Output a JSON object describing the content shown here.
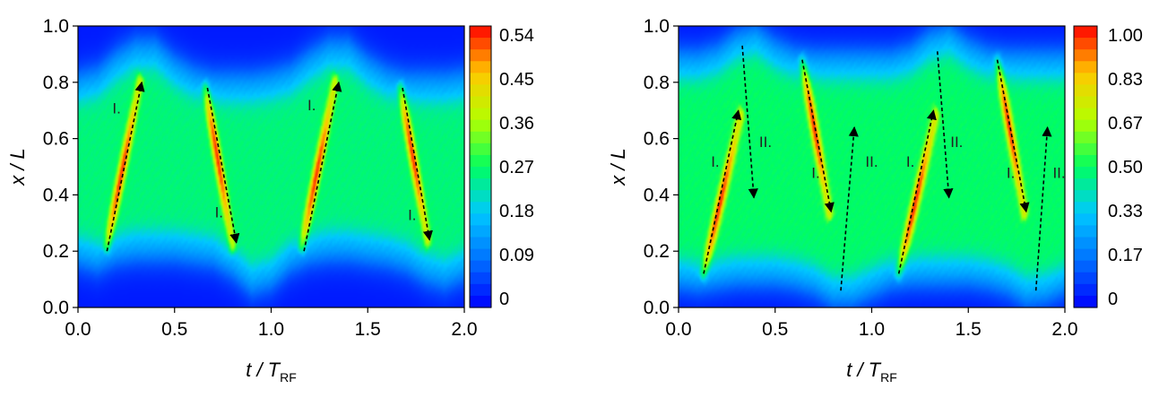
{
  "chart_data": [
    {
      "type": "heatmap",
      "title": "",
      "xlabel": "t / T_RF",
      "ylabel": "x / L",
      "xlim": [
        0.0,
        2.0
      ],
      "ylim": [
        0.0,
        1.0
      ],
      "x_ticks": [
        "0.0",
        "0.5",
        "1.0",
        "1.5",
        "2.0"
      ],
      "y_ticks": [
        "0.0",
        "0.2",
        "0.4",
        "0.6",
        "0.8",
        "1.0"
      ],
      "colorbar": {
        "ticks": [
          "0.54",
          "0.45",
          "0.36",
          "0.27",
          "0.18",
          "0.09",
          "0"
        ],
        "range": [
          0,
          0.54
        ],
        "colors": [
          "#0000ff",
          "#0070ff",
          "#00c8ff",
          "#00ff60",
          "#b4ff00",
          "#ffc800",
          "#ff0000"
        ]
      },
      "field": {
        "background": 0.26,
        "edge_value": 0.02,
        "edges_low": [
          [
            0.0,
            0.18
          ],
          [
            0.1,
            0.16
          ],
          [
            0.2,
            0.19
          ],
          [
            0.3,
            0.2
          ],
          [
            0.4,
            0.2
          ],
          [
            0.5,
            0.2
          ],
          [
            0.6,
            0.19
          ],
          [
            0.7,
            0.18
          ],
          [
            0.8,
            0.14
          ],
          [
            0.9,
            0.08
          ],
          [
            1.0,
            0.1
          ],
          [
            1.1,
            0.16
          ],
          [
            1.2,
            0.19
          ],
          [
            1.3,
            0.2
          ],
          [
            1.4,
            0.2
          ],
          [
            1.5,
            0.19
          ],
          [
            1.6,
            0.18
          ],
          [
            1.7,
            0.16
          ],
          [
            1.8,
            0.12
          ],
          [
            1.9,
            0.1
          ],
          [
            2.0,
            0.13
          ]
        ],
        "edges_high": [
          [
            0.0,
            0.8
          ],
          [
            0.1,
            0.82
          ],
          [
            0.2,
            0.88
          ],
          [
            0.3,
            0.92
          ],
          [
            0.4,
            0.92
          ],
          [
            0.5,
            0.86
          ],
          [
            0.6,
            0.82
          ],
          [
            0.7,
            0.8
          ],
          [
            0.8,
            0.8
          ],
          [
            0.9,
            0.8
          ],
          [
            1.0,
            0.81
          ],
          [
            1.1,
            0.83
          ],
          [
            1.2,
            0.88
          ],
          [
            1.3,
            0.92
          ],
          [
            1.4,
            0.92
          ],
          [
            1.5,
            0.86
          ],
          [
            1.6,
            0.82
          ],
          [
            1.7,
            0.8
          ],
          [
            1.8,
            0.8
          ],
          [
            1.9,
            0.8
          ],
          [
            2.0,
            0.81
          ]
        ],
        "bands": [
          {
            "from": [
              0.15,
              0.22
            ],
            "to": [
              0.32,
              0.8
            ],
            "peak": 0.52
          },
          {
            "from": [
              0.66,
              0.78
            ],
            "to": [
              0.8,
              0.22
            ],
            "peak": 0.52
          },
          {
            "from": [
              1.16,
              0.22
            ],
            "to": [
              1.33,
              0.8
            ],
            "peak": 0.52
          },
          {
            "from": [
              1.67,
              0.78
            ],
            "to": [
              1.81,
              0.24
            ],
            "peak": 0.52
          }
        ]
      },
      "arrows": [
        {
          "from": [
            0.15,
            0.2
          ],
          "to": [
            0.33,
            0.8
          ]
        },
        {
          "from": [
            0.67,
            0.78
          ],
          "to": [
            0.82,
            0.23
          ]
        },
        {
          "from": [
            1.17,
            0.2
          ],
          "to": [
            1.35,
            0.8
          ]
        },
        {
          "from": [
            1.68,
            0.78
          ],
          "to": [
            1.82,
            0.24
          ]
        }
      ],
      "annotations": [
        {
          "text": "I.",
          "x": 0.2,
          "y": 0.69
        },
        {
          "text": "I.",
          "x": 0.73,
          "y": 0.32
        },
        {
          "text": "I.",
          "x": 1.21,
          "y": 0.7
        },
        {
          "text": "I.",
          "x": 1.73,
          "y": 0.31
        }
      ]
    },
    {
      "type": "heatmap",
      "title": "",
      "xlabel": "t / T_RF",
      "ylabel": "x / L",
      "xlim": [
        0.0,
        2.0
      ],
      "ylim": [
        0.0,
        1.0
      ],
      "x_ticks": [
        "0.0",
        "0.5",
        "1.0",
        "1.5",
        "2.0"
      ],
      "y_ticks": [
        "0.0",
        "0.2",
        "0.4",
        "0.6",
        "0.8",
        "1.0"
      ],
      "colorbar": {
        "ticks": [
          "1.00",
          "0.83",
          "0.67",
          "0.50",
          "0.33",
          "0.17",
          "0"
        ],
        "range": [
          0,
          1.0
        ],
        "colors": [
          "#0000ff",
          "#0070ff",
          "#00c8ff",
          "#00ff60",
          "#b4ff00",
          "#ffc800",
          "#ff0000"
        ]
      },
      "field": {
        "background": 0.5,
        "edge_value": 0.03,
        "edges_low": [
          [
            0.0,
            0.1
          ],
          [
            0.1,
            0.09
          ],
          [
            0.2,
            0.1
          ],
          [
            0.3,
            0.11
          ],
          [
            0.4,
            0.11
          ],
          [
            0.5,
            0.11
          ],
          [
            0.6,
            0.1
          ],
          [
            0.7,
            0.08
          ],
          [
            0.8,
            0.04
          ],
          [
            0.9,
            0.04
          ],
          [
            1.0,
            0.07
          ],
          [
            1.1,
            0.1
          ],
          [
            1.2,
            0.11
          ],
          [
            1.3,
            0.11
          ],
          [
            1.4,
            0.11
          ],
          [
            1.5,
            0.11
          ],
          [
            1.6,
            0.1
          ],
          [
            1.7,
            0.08
          ],
          [
            1.8,
            0.04
          ],
          [
            1.9,
            0.05
          ],
          [
            2.0,
            0.08
          ]
        ],
        "edges_high": [
          [
            0.0,
            0.88
          ],
          [
            0.1,
            0.88
          ],
          [
            0.2,
            0.9
          ],
          [
            0.3,
            0.95
          ],
          [
            0.4,
            0.97
          ],
          [
            0.5,
            0.92
          ],
          [
            0.6,
            0.89
          ],
          [
            0.7,
            0.88
          ],
          [
            0.8,
            0.88
          ],
          [
            0.9,
            0.88
          ],
          [
            1.0,
            0.88
          ],
          [
            1.1,
            0.88
          ],
          [
            1.2,
            0.9
          ],
          [
            1.3,
            0.95
          ],
          [
            1.4,
            0.97
          ],
          [
            1.5,
            0.92
          ],
          [
            1.6,
            0.89
          ],
          [
            1.7,
            0.88
          ],
          [
            1.8,
            0.88
          ],
          [
            1.9,
            0.88
          ],
          [
            2.0,
            0.88
          ]
        ],
        "bands": [
          {
            "from": [
              0.13,
              0.12
            ],
            "to": [
              0.32,
              0.68
            ],
            "peak": 0.97
          },
          {
            "from": [
              0.64,
              0.88
            ],
            "to": [
              0.78,
              0.34
            ],
            "peak": 0.97
          },
          {
            "from": [
              1.14,
              0.12
            ],
            "to": [
              1.33,
              0.68
            ],
            "peak": 0.97
          },
          {
            "from": [
              1.65,
              0.88
            ],
            "to": [
              1.79,
              0.34
            ],
            "peak": 0.97
          }
        ]
      },
      "arrows": [
        {
          "from": [
            0.13,
            0.12
          ],
          "to": [
            0.31,
            0.7
          ]
        },
        {
          "from": [
            0.33,
            0.93
          ],
          "to": [
            0.39,
            0.39
          ]
        },
        {
          "from": [
            0.64,
            0.88
          ],
          "to": [
            0.79,
            0.34
          ]
        },
        {
          "from": [
            0.84,
            0.06
          ],
          "to": [
            0.91,
            0.64
          ]
        },
        {
          "from": [
            1.14,
            0.12
          ],
          "to": [
            1.32,
            0.7
          ]
        },
        {
          "from": [
            1.34,
            0.91
          ],
          "to": [
            1.4,
            0.39
          ]
        },
        {
          "from": [
            1.65,
            0.88
          ],
          "to": [
            1.8,
            0.34
          ]
        },
        {
          "from": [
            1.85,
            0.06
          ],
          "to": [
            1.91,
            0.64
          ]
        }
      ],
      "annotations": [
        {
          "text": "I.",
          "x": 0.19,
          "y": 0.5
        },
        {
          "text": "II.",
          "x": 0.45,
          "y": 0.57
        },
        {
          "text": "I.",
          "x": 0.71,
          "y": 0.46
        },
        {
          "text": "II.",
          "x": 1.0,
          "y": 0.5
        },
        {
          "text": "I.",
          "x": 1.2,
          "y": 0.5
        },
        {
          "text": "II.",
          "x": 1.44,
          "y": 0.57
        },
        {
          "text": "I.",
          "x": 1.72,
          "y": 0.46
        },
        {
          "text": "II.",
          "x": 1.97,
          "y": 0.46
        }
      ]
    }
  ]
}
